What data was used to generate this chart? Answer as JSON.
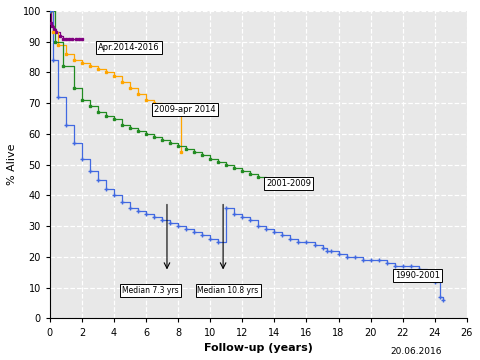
{
  "xlabel": "Follow-up (years)",
  "ylabel": "% Alive",
  "xlim": [
    0,
    26
  ],
  "ylim": [
    0,
    100
  ],
  "xticks": [
    0,
    2,
    4,
    6,
    8,
    10,
    12,
    14,
    16,
    18,
    20,
    22,
    24,
    26
  ],
  "yticks": [
    0,
    10,
    20,
    30,
    40,
    50,
    60,
    70,
    80,
    90,
    100
  ],
  "plot_bg_color": "#e8e8e8",
  "fig_bg_color": "#ffffff",
  "date_label": "20.06.2016",
  "curve_purple_x": [
    0,
    0.08,
    0.15,
    0.25,
    0.4,
    0.6,
    0.8,
    1.0,
    1.2,
    1.4,
    1.6,
    1.8,
    2.0
  ],
  "curve_purple_y": [
    100,
    96,
    95,
    94,
    93,
    92,
    91,
    91,
    91,
    91,
    91,
    91,
    91
  ],
  "curve_orange_x": [
    0,
    0.2,
    0.5,
    1.0,
    1.5,
    2.0,
    2.5,
    3.0,
    3.5,
    4.0,
    4.5,
    5.0,
    5.5,
    6.0,
    6.5,
    7.0,
    7.5,
    8.0,
    8.2
  ],
  "curve_orange_y": [
    100,
    93,
    89,
    86,
    84,
    83,
    82,
    81,
    80,
    79,
    77,
    75,
    73,
    71,
    70,
    69,
    68,
    67,
    54
  ],
  "curve_green_x": [
    0,
    0.3,
    0.8,
    1.5,
    2.0,
    2.5,
    3.0,
    3.5,
    4.0,
    4.5,
    5.0,
    5.5,
    6.0,
    6.5,
    7.0,
    7.5,
    8.0,
    8.5,
    9.0,
    9.5,
    10.0,
    10.5,
    11.0,
    11.5,
    12.0,
    12.5,
    13.0,
    13.5,
    14.0,
    14.5,
    15.0
  ],
  "curve_green_y": [
    100,
    90,
    82,
    75,
    71,
    69,
    67,
    66,
    65,
    63,
    62,
    61,
    60,
    59,
    58,
    57,
    56,
    55,
    54,
    53,
    52,
    51,
    50,
    49,
    48,
    47,
    46,
    45,
    45,
    44,
    44
  ],
  "curve_blue_x": [
    0,
    0.2,
    0.5,
    1.0,
    1.5,
    2.0,
    2.5,
    3.0,
    3.5,
    4.0,
    4.5,
    5.0,
    5.5,
    6.0,
    6.5,
    7.0,
    7.5,
    8.0,
    8.5,
    9.0,
    9.5,
    10.0,
    10.5,
    11.0,
    11.5,
    12.0,
    12.5,
    13.0,
    13.5,
    14.0,
    14.5,
    15.0,
    15.5,
    16.0,
    16.5,
    17.0,
    17.3,
    17.5,
    18.0,
    18.5,
    19.0,
    19.5,
    20.0,
    20.5,
    21.0,
    21.5,
    22.0,
    22.5,
    23.0,
    23.5,
    24.0,
    24.3,
    24.5
  ],
  "curve_blue_y": [
    100,
    84,
    72,
    63,
    57,
    52,
    48,
    45,
    42,
    40,
    38,
    36,
    35,
    34,
    33,
    32,
    31,
    30,
    29,
    28,
    27,
    26,
    25,
    36,
    34,
    33,
    32,
    30,
    29,
    28,
    27,
    26,
    25,
    25,
    24,
    23,
    22,
    22,
    21,
    20,
    20,
    19,
    19,
    19,
    18,
    17,
    17,
    17,
    16,
    13,
    12,
    7,
    6
  ],
  "purple_color": "#800080",
  "orange_color": "#FFA500",
  "green_color": "#228B22",
  "blue_color": "#4169E1",
  "label_apr2014": "Apr.2014-2016",
  "label_2009": "2009-apr 2014",
  "label_2001": "2001-2009",
  "label_1990": "1990-2001",
  "median1_label": "Median 7.3 yrs",
  "median1_x": 7.3,
  "median2_label": "Median 10.8 yrs",
  "median2_x": 10.8
}
